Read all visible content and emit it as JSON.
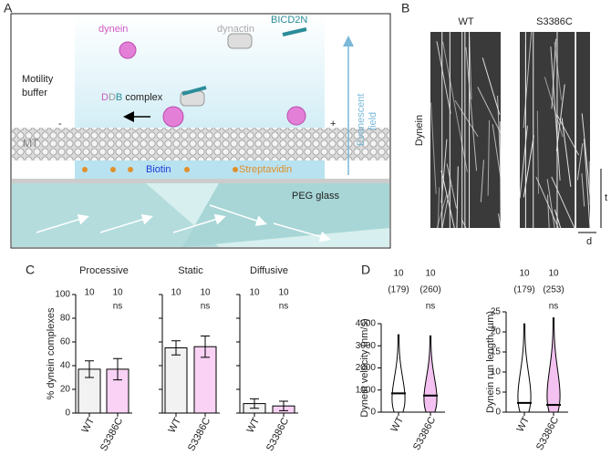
{
  "panels": {
    "a": {
      "label": "A",
      "dynein": "dynein",
      "dynactin": "dynactin",
      "bicd": "BICD2N",
      "buffer": [
        "Motility",
        "buffer"
      ],
      "ddb": [
        "D",
        "D",
        "B"
      ],
      "complex": "complex",
      "minus": "-",
      "plus": "+",
      "mt": "MT",
      "biotin": "Biotin",
      "streptavidin": "Streptavidin",
      "glass": "PEG glass",
      "field": [
        "Evanescent",
        "field"
      ]
    },
    "b": {
      "label": "B",
      "wt": "WT",
      "mutant": "S3386C",
      "ylabel": "Dynein",
      "t": "t",
      "d": "d"
    },
    "c": {
      "label": "C"
    },
    "d": {
      "label": "D"
    }
  },
  "chart_data": [
    {
      "type": "bar",
      "title": "Processive",
      "ylabel": "% dynein complexes",
      "categories": [
        "WT",
        "S3386C"
      ],
      "values": [
        37,
        37
      ],
      "errors": [
        7,
        9
      ],
      "colors": [
        "#f2f2f2",
        "#f9d2f5"
      ],
      "ylim": [
        0,
        100
      ],
      "yticks": [
        0,
        20,
        40,
        60,
        80,
        100
      ],
      "n_labels": [
        "10",
        "10"
      ],
      "sig_labels": [
        null,
        "ns"
      ]
    },
    {
      "type": "bar",
      "title": "Static",
      "categories": [
        "WT",
        "S3386C"
      ],
      "values": [
        55,
        56
      ],
      "errors": [
        6,
        9
      ],
      "colors": [
        "#f2f2f2",
        "#f9d2f5"
      ],
      "ylim": [
        0,
        100
      ],
      "yticks": [
        0,
        20,
        40,
        60,
        80,
        100
      ],
      "tick_labels": false,
      "n_labels": [
        "10",
        "10"
      ],
      "sig_labels": [
        null,
        "ns"
      ]
    },
    {
      "type": "bar",
      "title": "Diffusive",
      "categories": [
        "WT",
        "S3386C"
      ],
      "values": [
        8,
        6
      ],
      "errors": [
        4,
        4
      ],
      "colors": [
        "#f2f2f2",
        "#f9d2f5"
      ],
      "ylim": [
        0,
        100
      ],
      "yticks": [
        0,
        20,
        40,
        60,
        80,
        100
      ],
      "tick_labels": false,
      "n_labels": [
        "10",
        "10"
      ],
      "sig_labels": [
        null,
        "ns"
      ]
    },
    {
      "type": "violin",
      "ylabel": "Dynein velocity (nm/s)",
      "categories": [
        "WT",
        "S3386C"
      ],
      "values": [
        850,
        750
      ],
      "max": [
        3500,
        3450
      ],
      "colors": [
        "#ffffff",
        "#f4c2f0"
      ],
      "ylim": [
        0,
        4000
      ],
      "yticks": [
        0,
        1000,
        2000,
        3000,
        4000
      ],
      "n_labels": [
        "10",
        "10"
      ],
      "count_labels": [
        "(179)",
        "(260)"
      ],
      "sig_labels": [
        null,
        "ns"
      ]
    },
    {
      "type": "violin",
      "ylabel": "Dynein run length (µm)",
      "categories": [
        "WT",
        "S3386C"
      ],
      "values": [
        2.3,
        1.8
      ],
      "max": [
        22,
        23.5
      ],
      "colors": [
        "#ffffff",
        "#f4c2f0"
      ],
      "ylim": [
        0,
        25
      ],
      "yticks": [
        0,
        5,
        10,
        15,
        20,
        25
      ],
      "n_labels": [
        "10",
        "10"
      ],
      "count_labels": [
        "(179)",
        "(253)"
      ],
      "sig_labels": [
        null,
        "ns"
      ]
    }
  ]
}
